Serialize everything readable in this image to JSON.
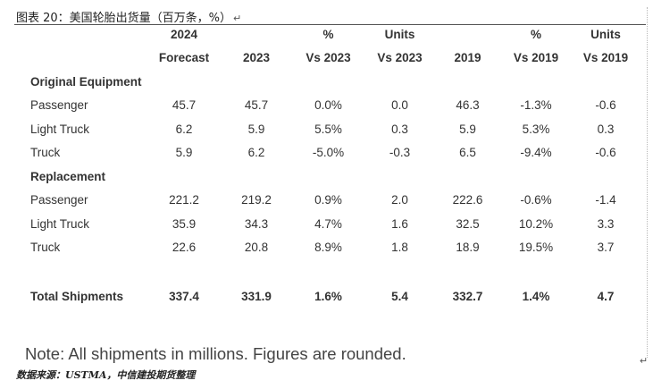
{
  "caption": "图表 20：美国轮胎出货量（百万条，%）",
  "return_mark": "↵",
  "columns": [
    {
      "line1": "2024",
      "line2": "Forecast"
    },
    {
      "line1": "",
      "line2": "2023"
    },
    {
      "line1": "%",
      "line2": "Vs 2023"
    },
    {
      "line1": "Units",
      "line2": "Vs 2023"
    },
    {
      "line1": "",
      "line2": "2019"
    },
    {
      "line1": "%",
      "line2": "Vs 2019"
    },
    {
      "line1": "Units",
      "line2": "Vs 2019"
    }
  ],
  "sections": [
    {
      "title": "Original Equipment",
      "rows": [
        {
          "label": "Passenger",
          "values": [
            "45.7",
            "45.7",
            "0.0%",
            "0.0",
            "46.3",
            "-1.3%",
            "-0.6"
          ]
        },
        {
          "label": "Light Truck",
          "values": [
            "6.2",
            "5.9",
            "5.5%",
            "0.3",
            "5.9",
            "5.3%",
            "0.3"
          ]
        },
        {
          "label": "Truck",
          "values": [
            "5.9",
            "6.2",
            "-5.0%",
            "-0.3",
            "6.5",
            "-9.4%",
            "-0.6"
          ]
        }
      ]
    },
    {
      "title": "Replacement",
      "rows": [
        {
          "label": "Passenger",
          "values": [
            "221.2",
            "219.2",
            "0.9%",
            "2.0",
            "222.6",
            "-0.6%",
            "-1.4"
          ]
        },
        {
          "label": "Light Truck",
          "values": [
            "35.9",
            "34.3",
            "4.7%",
            "1.6",
            "32.5",
            "10.2%",
            "3.3"
          ]
        },
        {
          "label": "Truck",
          "values": [
            "22.6",
            "20.8",
            "8.9%",
            "1.8",
            "18.9",
            "19.5%",
            "3.7"
          ]
        }
      ]
    }
  ],
  "total": {
    "label": "Total Shipments",
    "values": [
      "337.4",
      "331.9",
      "1.6%",
      "5.4",
      "332.7",
      "1.4%",
      "4.7"
    ]
  },
  "note": "Note: All shipments in millions. Figures are rounded.",
  "source": "数据来源：USTMA，中信建投期货整理"
}
